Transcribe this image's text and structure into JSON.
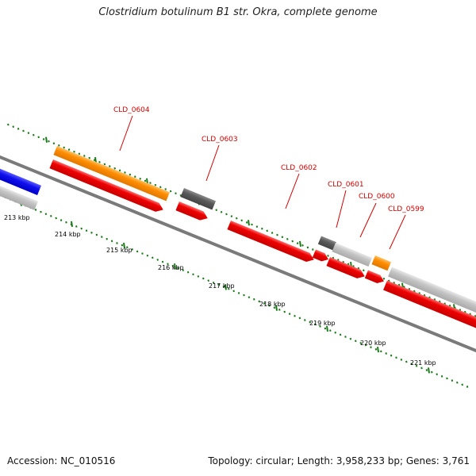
{
  "title": "Clostridium botulinum B1 str. Okra, complete genome",
  "footer": {
    "accession": "Accession: NC_010516",
    "summary": "Topology: circular; Length: 3,958,233 bp; Genes: 3,761"
  },
  "colors": {
    "cds": "#ee0000",
    "cds_highlight": "#ff8080",
    "orange": "#ff8c00",
    "dark_gray": "#5a5a5a",
    "light_gray": "#c2c2c2",
    "blue": "#1010ee",
    "backbone": "#7a7a7a",
    "ticks": "#1a7a1a",
    "label": "#d40000"
  },
  "scale_labels": [
    "213 kbp",
    "214 kbp",
    "215 kbp",
    "216 kbp",
    "217 kbp",
    "218 kbp",
    "219 kbp",
    "220 kbp",
    "221 kbp"
  ],
  "feature_labels": [
    "CLD_0604",
    "CLD_0603",
    "CLD_0602",
    "CLD_0601",
    "CLD_0600",
    "CLD_0599"
  ]
}
